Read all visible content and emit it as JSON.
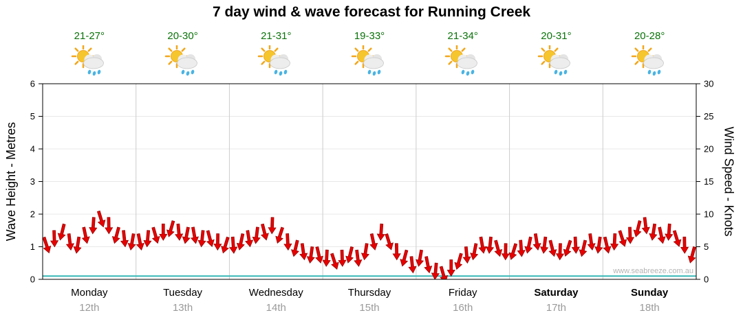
{
  "title": "7 day wind & wave forecast for Running Creek",
  "watermark": "www.seabreeze.com.au",
  "colors": {
    "temp_text": "#0a720a",
    "wind_red": "#e60000",
    "wind_outline": "#8f0000",
    "wave_teal": "#35b6b6",
    "grid_vertical": "#cccccc",
    "grid_horizontal": "#e8e8e8",
    "axis_line": "#000000",
    "tick_text": "#000000",
    "date_text": "#9a9a9a",
    "watermark_text": "#b4b4b4"
  },
  "axes": {
    "left_label": "Wave Height - Metres",
    "right_label": "Wind Speed - Knots",
    "left_ticks": [
      0,
      1,
      2,
      3,
      4,
      5,
      6
    ],
    "right_ticks": [
      0,
      5,
      10,
      15,
      20,
      25,
      30
    ]
  },
  "days": [
    {
      "name": "Monday",
      "date": "12th",
      "temp": "21-27°",
      "icon": "sun-cloud-rain-icon",
      "bold": false
    },
    {
      "name": "Tuesday",
      "date": "13th",
      "temp": "20-30°",
      "icon": "sun-cloud-rain-icon",
      "bold": false
    },
    {
      "name": "Wednesday",
      "date": "14th",
      "temp": "21-31°",
      "icon": "sun-cloud-rain-icon",
      "bold": false
    },
    {
      "name": "Thursday",
      "date": "15th",
      "temp": "19-33°",
      "icon": "sun-cloud-rain-icon",
      "bold": false
    },
    {
      "name": "Friday",
      "date": "16th",
      "temp": "21-34°",
      "icon": "sun-cloud-rain-icon",
      "bold": false
    },
    {
      "name": "Saturday",
      "date": "17th",
      "temp": "20-31°",
      "icon": "sun-cloud-rain-icon",
      "bold": true
    },
    {
      "name": "Sunday",
      "date": "18th",
      "temp": "20-28°",
      "icon": "sun-cloud-rain-icon",
      "bold": true
    }
  ],
  "chart_data": {
    "type": "area",
    "title": "7 day wind & wave forecast for Running Creek",
    "x_days": [
      "Monday 12th",
      "Tuesday 13th",
      "Wednesday 14th",
      "Thursday 15th",
      "Friday 16th",
      "Saturday 17th",
      "Sunday 18th"
    ],
    "ylim_left_metres": [
      0,
      6
    ],
    "ylim_right_knots": [
      0,
      30
    ],
    "grid": "vertical day separators, horizontal unit lines",
    "legend_position": "none",
    "series": [
      {
        "name": "Wind Speed",
        "units": "knots",
        "axis": "right",
        "style": "red wind arrows",
        "samples_per_day": 12,
        "values_by_day": [
          [
            6.5,
            7.5,
            8.5,
            7.0,
            6.5,
            8.0,
            9.5,
            10.5,
            9.5,
            8.0,
            7.5,
            7.0
          ],
          [
            7.0,
            7.5,
            8.0,
            8.5,
            9.0,
            8.5,
            8.0,
            8.0,
            7.5,
            7.5,
            7.0,
            6.5
          ],
          [
            6.5,
            7.0,
            7.5,
            8.0,
            8.5,
            9.5,
            8.0,
            7.0,
            6.0,
            5.5,
            5.0,
            5.0
          ],
          [
            4.5,
            4.0,
            4.5,
            5.0,
            4.5,
            5.5,
            7.0,
            8.5,
            7.0,
            5.5,
            4.5,
            3.5
          ],
          [
            4.5,
            3.5,
            2.5,
            2.0,
            3.0,
            4.0,
            5.0,
            5.5,
            6.5,
            6.5,
            6.0,
            5.5
          ],
          [
            5.5,
            6.0,
            6.5,
            7.0,
            6.5,
            6.0,
            5.5,
            6.0,
            6.5,
            6.0,
            7.0,
            6.5
          ],
          [
            6.5,
            7.0,
            7.5,
            8.0,
            9.0,
            9.5,
            8.5,
            8.0,
            8.5,
            7.5,
            6.5,
            5.0
          ]
        ]
      },
      {
        "name": "Wave Height",
        "units": "metres",
        "axis": "left",
        "style": "flat teal line",
        "values_by_day": [
          0.1,
          0.1,
          0.1,
          0.1,
          0.1,
          0.1,
          0.1
        ]
      }
    ]
  }
}
